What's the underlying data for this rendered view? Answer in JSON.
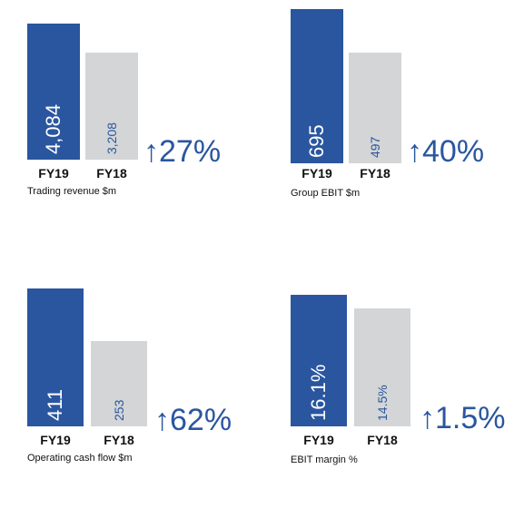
{
  "colors": {
    "fy19": "#2a56a0",
    "fy18": "#d3d5d6",
    "fy19_text": "#ffffff",
    "fy18_text": "#2a56a0",
    "accent": "#2a56a0"
  },
  "chart_data": [
    {
      "type": "bar",
      "title": "Trading revenue $m",
      "categories": [
        "FY19",
        "FY18"
      ],
      "values": [
        4084,
        3208
      ],
      "value_labels": [
        "4,084",
        "3,208"
      ],
      "change": "↑27%",
      "ylim": [
        0,
        4300
      ]
    },
    {
      "type": "bar",
      "title": "Group EBIT  $m",
      "categories": [
        "FY19",
        "FY18"
      ],
      "values": [
        695,
        497
      ],
      "value_labels": [
        "695",
        "497"
      ],
      "change": "↑40%",
      "ylim": [
        0,
        695
      ]
    },
    {
      "type": "bar",
      "title": "Operating cash flow $m",
      "categories": [
        "FY19",
        "FY18"
      ],
      "values": [
        411,
        253
      ],
      "value_labels": [
        "411",
        "253"
      ],
      "change": "↑62%",
      "ylim": [
        0,
        411
      ]
    },
    {
      "type": "bar",
      "title": "EBIT  margin %",
      "categories": [
        "FY19",
        "FY18"
      ],
      "values": [
        16.1,
        14.5
      ],
      "value_labels": [
        "16.1%",
        "14.5%"
      ],
      "change": "↑1.5%",
      "ylim": [
        0,
        16.7
      ]
    }
  ]
}
